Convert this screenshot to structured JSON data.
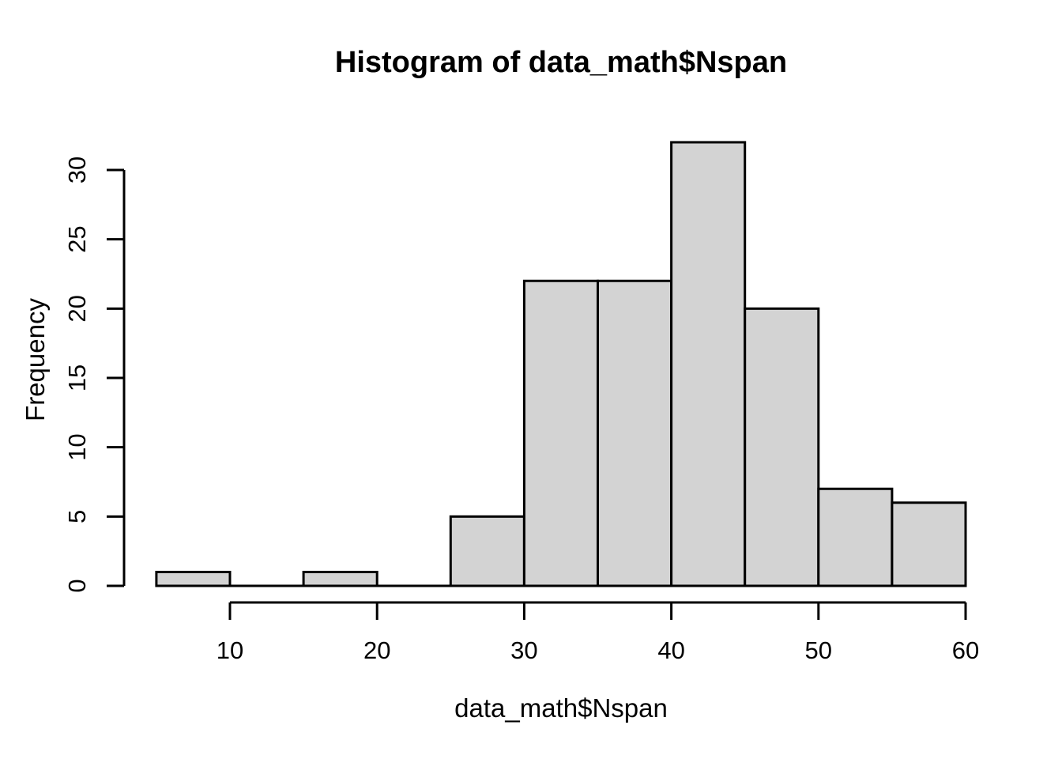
{
  "chart_data": {
    "type": "bar",
    "subtype": "histogram",
    "title": "Histogram of data_math$Nspan",
    "xlabel": "data_math$Nspan",
    "ylabel": "Frequency",
    "bin_breaks": [
      5,
      10,
      15,
      20,
      25,
      30,
      35,
      40,
      45,
      50,
      55,
      60
    ],
    "counts": [
      1,
      0,
      1,
      0,
      5,
      22,
      22,
      32,
      20,
      7,
      6
    ],
    "x_ticks": [
      10,
      20,
      30,
      40,
      50,
      60
    ],
    "y_ticks": [
      0,
      5,
      10,
      15,
      20,
      25,
      30
    ],
    "xlim": [
      5,
      60
    ],
    "ylim": [
      0,
      32
    ],
    "grid": false,
    "legend": false,
    "colors": {
      "bar_fill": "#d3d3d3",
      "bar_border": "#000000",
      "axis": "#000000",
      "text": "#000000",
      "background": "#ffffff"
    }
  }
}
